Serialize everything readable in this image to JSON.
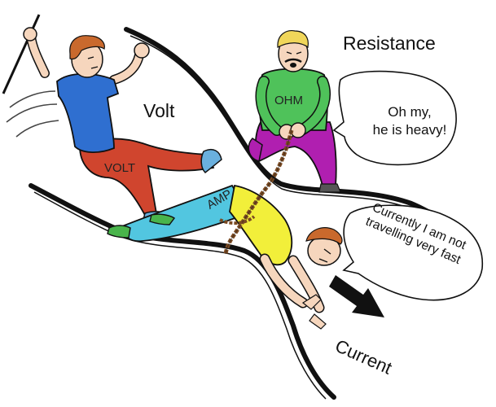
{
  "labels": {
    "volt_title": "Volt",
    "resistance_title": "Resistance",
    "current_title": "Current",
    "volt_shirt": "VOLT",
    "ohm_shirt": "OHM",
    "amp_shirt": "AMP"
  },
  "bubbles": {
    "ohm_line1": "Oh my,",
    "ohm_line2": "he is heavy!",
    "amp_line1": "Currently I am not",
    "amp_line2": "travelling very fast"
  },
  "colors": {
    "volt_shirt": "#2f6fd0",
    "volt_pants": "#d0452e",
    "ohm_shirt": "#4fc25a",
    "ohm_pants": "#b01fb0",
    "amp_shirt": "#f2ef3a",
    "amp_pants": "#52c6e0",
    "hair": "#c9692d",
    "ohm_hair": "#f0d65a",
    "skin": "#f6d6bd",
    "rope": "#7a4a22",
    "outline": "#111111"
  }
}
